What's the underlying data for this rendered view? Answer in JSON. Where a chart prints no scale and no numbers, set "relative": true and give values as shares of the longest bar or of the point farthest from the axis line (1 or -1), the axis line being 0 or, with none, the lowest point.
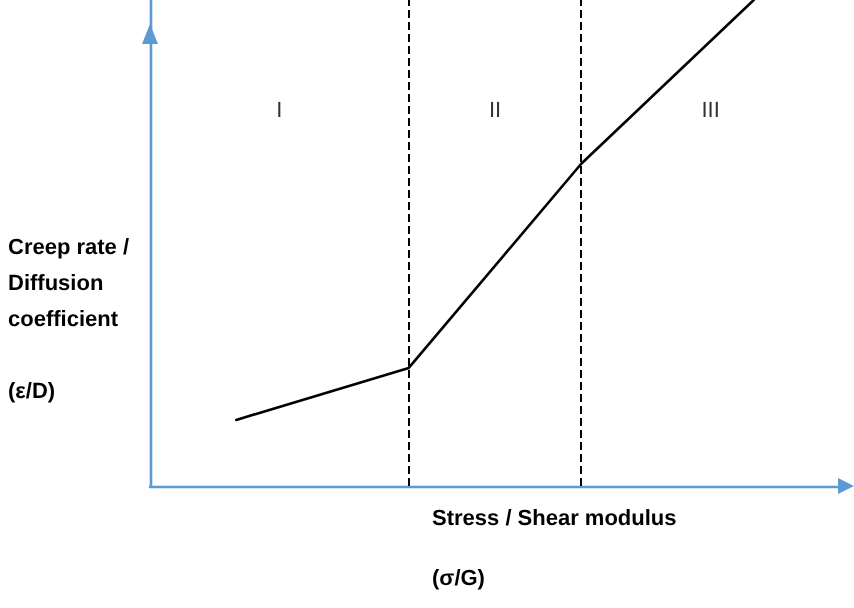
{
  "chart_data": {
    "type": "line",
    "relative": true,
    "xlabel": "Stress / Shear modulus\n\n(σ/G)",
    "ylabel": "Creep rate /\nDiffusion\ncoefficient\n\n(ε/D)",
    "categories": [
      null,
      null,
      null,
      null
    ],
    "series": [
      {
        "color": "#000000",
        "values": [
          0.136,
          0.243,
          0.663,
          1
        ]
      }
    ],
    "annotations": [
      "I",
      "II",
      "III"
    ],
    "marker": "none",
    "line_style": "solid",
    "grid": false
  }
}
